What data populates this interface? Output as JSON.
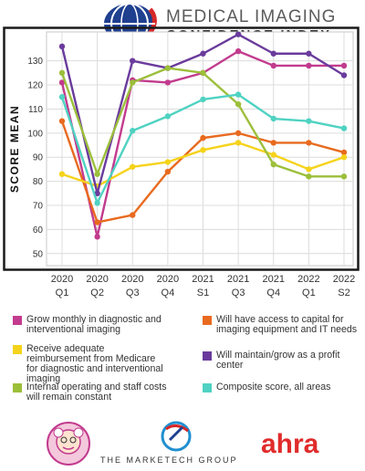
{
  "brand": {
    "title": "MEDICAL IMAGING",
    "subtitle": "CONFIDENCE INDEX"
  },
  "colors": {
    "frame": "#1a1a1a",
    "grid": "#dcdcdc",
    "pink": "#c23b8e",
    "orange": "#e86a1f",
    "yellow": "#f5d31a",
    "purple": "#6a3b9c",
    "green": "#9cbf3a",
    "teal": "#4fd2c2",
    "ahra": "#e02b2b"
  },
  "chart_data": {
    "type": "line",
    "ylabel": "SCORE MEAN",
    "xlabel": "",
    "ylim": [
      45,
      142
    ],
    "yticks": [
      50,
      60,
      70,
      80,
      90,
      100,
      110,
      120,
      130
    ],
    "grid": true,
    "categories": [
      [
        "2020",
        "Q1"
      ],
      [
        "2020",
        "Q2"
      ],
      [
        "2020",
        "Q3"
      ],
      [
        "2020",
        "Q4"
      ],
      [
        "2021",
        "S1"
      ],
      [
        "2021",
        "Q3"
      ],
      [
        "2021",
        "Q4"
      ],
      [
        "2022",
        "Q1"
      ],
      [
        "2022",
        "S2"
      ]
    ],
    "series": [
      {
        "key": "pink",
        "color": "#c23b8e",
        "values": [
          121,
          57,
          122,
          121,
          125,
          134,
          128,
          128,
          128
        ]
      },
      {
        "key": "orange",
        "color": "#e86a1f",
        "values": [
          105,
          63,
          66,
          84,
          98,
          100,
          96,
          96,
          92
        ]
      },
      {
        "key": "yellow",
        "color": "#f5d31a",
        "values": [
          83,
          78,
          86,
          88,
          93,
          96,
          91,
          85,
          90
        ]
      },
      {
        "key": "purple",
        "color": "#6a3b9c",
        "values": [
          136,
          75,
          130,
          127,
          133,
          141,
          133,
          133,
          124
        ]
      },
      {
        "key": "green",
        "color": "#9cbf3a",
        "values": [
          125,
          83,
          121,
          127,
          125,
          112,
          87,
          82,
          82
        ]
      },
      {
        "key": "teal",
        "color": "#4fd2c2",
        "values": [
          115,
          71,
          101,
          107,
          114,
          116,
          106,
          105,
          102
        ]
      }
    ]
  },
  "legend": {
    "items": [
      {
        "label": "Grow monthly in diagnostic and interventional imaging",
        "color": "#c23b8e"
      },
      {
        "label": "Will have access to capital for imaging equipment and IT needs",
        "color": "#e86a1f"
      },
      {
        "label": "Receive adequate reimbursement from Medicare for diagnostic and interventional imaging",
        "color": "#f5d31a"
      },
      {
        "label": "Will maintain/grow as a profit center",
        "color": "#6a3b9c"
      },
      {
        "label": "Internal operating and staff costs will remain constant",
        "color": "#9cbf3a"
      },
      {
        "label": "Composite score, all areas",
        "color": "#4fd2c2"
      }
    ]
  },
  "footer": {
    "marketech": "THE MARKETECH GROUP",
    "ahra": "ahra"
  }
}
